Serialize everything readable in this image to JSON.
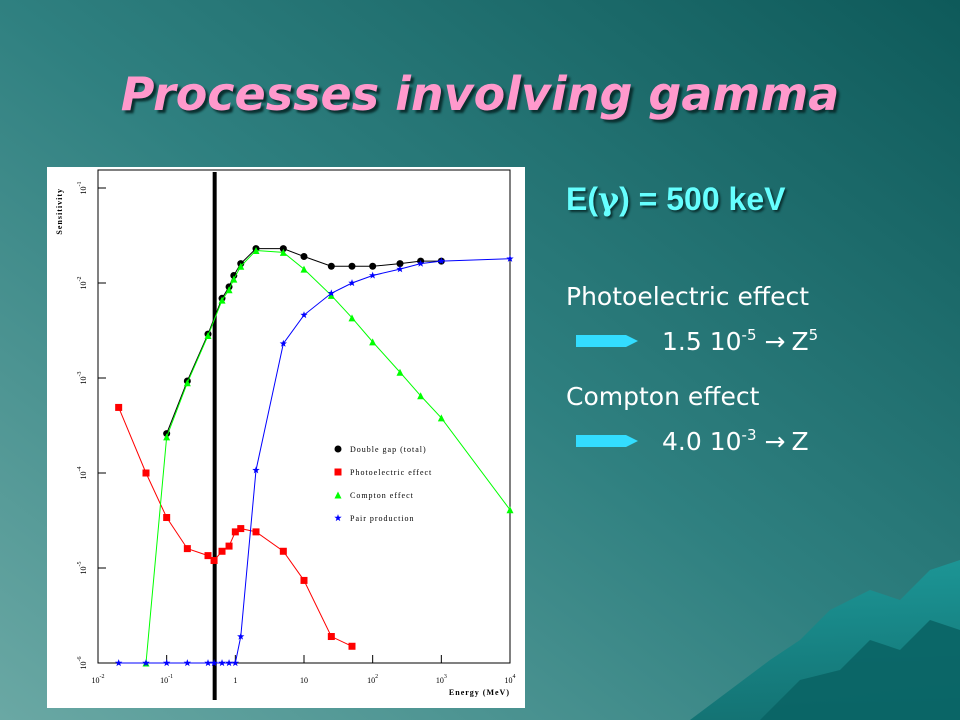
{
  "slide": {
    "title": "Processes involving gamma",
    "energy": {
      "prefix": "E(",
      "symbol": "γ",
      "suffix": ") = 500 keV"
    },
    "items": [
      {
        "label": "Photoelectric effect",
        "value": "1.5 10",
        "value_exp": "-5",
        "arrow": "→",
        "relation": "Z",
        "relation_exp": "5"
      },
      {
        "label": "Compton effect",
        "value": "4.0 10",
        "value_exp": "-3",
        "arrow": "→",
        "relation": "Z"
      }
    ]
  },
  "chart_data": {
    "type": "line",
    "log_x": true,
    "log_y": true,
    "xlabel": "Energy (MeV)",
    "ylabel": "Sensitivity",
    "xlim": [
      0.01,
      10000
    ],
    "ylim": [
      1e-06,
      0.1
    ],
    "xticks": [
      {
        "value": 0.01,
        "label": "10",
        "exponent": "-2"
      },
      {
        "value": 0.1,
        "label": "10",
        "exponent": "-1"
      },
      1,
      10,
      {
        "value": 100,
        "label": "10",
        "exponent": "2"
      },
      {
        "value": 1000,
        "label": "10",
        "exponent": "3"
      },
      {
        "value": 10000,
        "label": "10",
        "exponent": "4"
      }
    ],
    "yticks": [
      {
        "value": 1e-06,
        "label": "10",
        "exponent": "-6"
      },
      {
        "value": 1e-05,
        "label": "10",
        "exponent": "-5"
      },
      {
        "value": 0.0001,
        "label": "10",
        "exponent": "-4"
      },
      {
        "value": 0.001,
        "label": "10",
        "exponent": "-3"
      },
      {
        "value": 0.01,
        "label": "10",
        "exponent": "-2"
      },
      {
        "value": 0.1,
        "label": "10",
        "exponent": "-1"
      }
    ],
    "marker_line_x": 0.5,
    "series": [
      {
        "name": "Double gap (total)",
        "color": "#000000",
        "marker": "circle",
        "x": [
          0.1,
          0.2,
          0.4,
          0.64,
          0.81,
          0.95,
          1.2,
          2,
          5,
          10,
          25,
          50,
          100,
          250,
          500,
          1000
        ],
        "values": [
          0.00026,
          0.00093,
          0.0029,
          0.0069,
          0.0091,
          0.012,
          0.016,
          0.023,
          0.023,
          0.019,
          0.015,
          0.015,
          0.015,
          0.016,
          0.017,
          0.017
        ]
      },
      {
        "name": "Photoelectric effect",
        "color": "#ff0000",
        "marker": "square",
        "x": [
          0.02,
          0.05,
          0.1,
          0.2,
          0.4,
          0.49,
          0.64,
          0.81,
          1,
          1.2,
          2,
          5,
          10,
          25,
          50
        ],
        "values": [
          0.00049,
          0.0001,
          3.4e-05,
          1.6e-05,
          1.35e-05,
          1.2e-05,
          1.5e-05,
          1.7e-05,
          2.4e-05,
          2.6e-05,
          2.4e-05,
          1.5e-05,
          7.4e-06,
          1.9e-06,
          1.5e-06
        ]
      },
      {
        "name": "Compton effect",
        "color": "#00ff00",
        "marker": "triangle",
        "x": [
          0.05,
          0.1,
          0.2,
          0.4,
          0.64,
          0.81,
          0.95,
          1.2,
          2,
          5,
          10,
          25,
          50,
          100,
          250,
          500,
          1000,
          10000
        ],
        "values": [
          1e-06,
          0.00024,
          0.00089,
          0.0028,
          0.0066,
          0.0085,
          0.011,
          0.015,
          0.022,
          0.021,
          0.014,
          0.0074,
          0.0043,
          0.0024,
          0.00115,
          0.00065,
          0.00038,
          4.1e-05
        ]
      },
      {
        "name": "Pair production",
        "color": "#0000ff",
        "marker": "star",
        "x": [
          0.02,
          0.05,
          0.1,
          0.2,
          0.4,
          0.49,
          0.64,
          0.81,
          1,
          1.2,
          2,
          5,
          10,
          25,
          50,
          100,
          250,
          500,
          1000,
          10000
        ],
        "values": [
          1e-06,
          1e-06,
          1e-06,
          1e-06,
          1e-06,
          1e-06,
          1e-06,
          1e-06,
          1e-06,
          1.9e-06,
          0.000107,
          0.0023,
          0.0046,
          0.0078,
          0.01,
          0.012,
          0.014,
          0.016,
          0.017,
          0.018
        ]
      }
    ]
  }
}
